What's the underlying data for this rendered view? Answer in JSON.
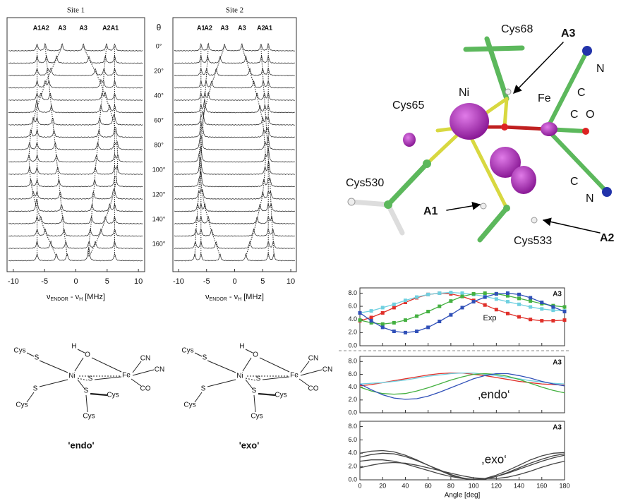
{
  "spectra": {
    "theta_label": "θ",
    "angles": [
      {
        "value": 0,
        "label": "0°"
      },
      {
        "value": 20,
        "label": "20°"
      },
      {
        "value": 40,
        "label": "40°"
      },
      {
        "value": 60,
        "label": "60°"
      },
      {
        "value": 80,
        "label": "80°"
      },
      {
        "value": 100,
        "label": "100°"
      },
      {
        "value": 120,
        "label": "120°"
      },
      {
        "value": 140,
        "label": "140°"
      },
      {
        "value": 160,
        "label": "160°"
      }
    ],
    "trace_angles": [
      0,
      10,
      20,
      30,
      40,
      50,
      60,
      70,
      80,
      90,
      100,
      110,
      120,
      130,
      140,
      150,
      160,
      170
    ],
    "panels": [
      {
        "title": "Site 1",
        "peak_labels": [
          "A1",
          "A2",
          "A3",
          "A3",
          "A2",
          "A1"
        ],
        "xlim": [
          -11,
          11
        ],
        "xticks": [
          -10,
          -5,
          0,
          5,
          10
        ],
        "xlabel_parts": [
          "ν",
          "ENDOR",
          " - ν",
          "H",
          "  [MHz]"
        ],
        "tracks": [
          {
            "x": [
              -6.2,
              -6.2,
              -6.2,
              -6.2,
              -6.2,
              -6.2,
              -6.2,
              -6.2,
              -6.2,
              -6.2,
              -6.2,
              -6.2,
              -6.2,
              -6.2,
              -6.2,
              -6.2,
              -6.2,
              -6.2
            ]
          },
          {
            "x": [
              -4.9,
              -4.7,
              -4.5,
              -4.3,
              -4.1,
              -3.9,
              -3.7,
              -3.5,
              -3.3,
              -3.1,
              -2.9,
              -2.7,
              -2.5,
              -2.3,
              -2.1,
              -1.9,
              -1.6,
              -1.4
            ]
          },
          {
            "x": [
              -2.2,
              -3.1,
              -4.0,
              -4.9,
              -5.6,
              -6.3,
              -6.8,
              -7.2,
              -7.4,
              -7.5,
              -7.4,
              -7.2,
              -6.8,
              -6.3,
              -5.6,
              -4.9,
              -4.0,
              -3.1
            ]
          },
          {
            "x": [
              1.2,
              2.1,
              3.1,
              4.0,
              4.7,
              5.4,
              6.0,
              6.4,
              6.6,
              6.7,
              6.6,
              6.4,
              6.0,
              5.4,
              4.7,
              4.0,
              3.1,
              2.1
            ]
          },
          {
            "x": [
              4.9,
              4.7,
              4.5,
              4.4,
              4.2,
              4.0,
              3.8,
              3.7,
              3.5,
              3.3,
              3.1,
              3.0,
              2.8,
              2.6,
              2.5,
              2.3,
              2.1,
              2.0
            ]
          },
          {
            "x": [
              6.2,
              6.2,
              6.2,
              6.2,
              6.2,
              6.2,
              6.2,
              6.2,
              6.2,
              6.2,
              6.2,
              6.2,
              6.2,
              6.2,
              6.2,
              6.2,
              6.2,
              6.2
            ]
          }
        ]
      },
      {
        "title": "Site 2",
        "peak_labels": [
          "A1",
          "A2",
          "A3",
          "A3",
          "A2",
          "A1"
        ],
        "xlim": [
          -11,
          11
        ],
        "xticks": [
          -10,
          -5,
          0,
          5,
          10
        ],
        "xlabel_parts": [
          "ν",
          "ENDOR",
          " - ν",
          "H",
          "  [MHz]"
        ],
        "tracks": [
          {
            "x": [
              -6.0,
              -6.0,
              -6.0,
              -6.0,
              -6.0,
              -6.0,
              -6.0,
              -6.0,
              -6.0,
              -6.0,
              -6.0,
              -6.0,
              -6.0,
              -6.0,
              -6.0,
              -6.0,
              -6.0,
              -6.0
            ]
          },
          {
            "x": [
              -4.7,
              -4.8,
              -5.0,
              -5.1,
              -5.3,
              -5.4,
              -5.6,
              -5.7,
              -5.9,
              -6.0,
              -6.1,
              -6.3,
              -6.4,
              -6.6,
              -6.7,
              -6.9,
              -7.0,
              -7.1
            ]
          },
          {
            "x": [
              -1.8,
              -2.6,
              -3.3,
              -4.1,
              -4.7,
              -5.3,
              -5.7,
              -6.0,
              -6.2,
              -6.3,
              -6.2,
              -6.0,
              -5.7,
              -5.3,
              -4.7,
              -4.1,
              -3.3,
              -2.6
            ]
          },
          {
            "x": [
              1.3,
              2.0,
              2.7,
              3.4,
              4.0,
              4.5,
              5.0,
              5.2,
              5.4,
              5.5,
              5.4,
              5.2,
              5.0,
              4.5,
              4.0,
              3.4,
              2.7,
              2.0
            ]
          },
          {
            "x": [
              4.7,
              4.8,
              5.0,
              5.1,
              5.3,
              5.4,
              5.6,
              5.7,
              5.9,
              6.0,
              6.1,
              6.3,
              6.4,
              6.5,
              6.6,
              6.8,
              6.9,
              7.0
            ]
          },
          {
            "x": [
              6.0,
              6.0,
              6.0,
              6.0,
              6.0,
              6.0,
              6.0,
              6.0,
              6.0,
              6.0,
              6.0,
              6.0,
              6.0,
              6.0,
              6.0,
              6.0,
              6.0,
              6.0
            ]
          }
        ]
      }
    ]
  },
  "molecule": {
    "labels": [
      "Cys68",
      "A3",
      "N",
      "Ni",
      "Fe",
      "C",
      "Cys65",
      "C",
      "O",
      "C",
      "N",
      "Cys530",
      "A1",
      "Cys533",
      "A2"
    ]
  },
  "structures": [
    {
      "labels": [
        "Cys",
        "S",
        "H",
        "O",
        "Ni",
        "Fe",
        "CN",
        "CN",
        "CO",
        "S",
        "S",
        "Cys",
        "S",
        "Cys",
        "Cys"
      ],
      "caption": "'endo'"
    },
    {
      "labels": [
        "Cys",
        "S",
        "H",
        "O",
        "Ni",
        "Fe",
        "CN",
        "CN",
        "CO",
        "S",
        "S",
        "Cys",
        "S",
        "Cys",
        "Cys"
      ],
      "caption": "'exo'"
    }
  ],
  "chart_data": [
    {
      "type": "line",
      "markers": true,
      "annotation": "Exp",
      "corner_label": "A3",
      "x": [
        0,
        10,
        20,
        30,
        40,
        50,
        60,
        70,
        80,
        90,
        100,
        110,
        120,
        130,
        140,
        150,
        160,
        170,
        180
      ],
      "xlim": [
        0,
        180
      ],
      "xticks": [
        0,
        20,
        40,
        60,
        80,
        100,
        120,
        140,
        160,
        180
      ],
      "ylim": [
        0,
        8.8
      ],
      "yticks": [
        {
          "value": 0,
          "label": "0.0"
        },
        {
          "value": 2,
          "label": "2.0"
        },
        {
          "value": 4,
          "label": "4.0"
        },
        {
          "value": 6,
          "label": "6.0"
        },
        {
          "value": 8,
          "label": "8.0"
        }
      ],
      "series": [
        {
          "color": "#e0302a",
          "values": [
            3.8,
            4.3,
            5.0,
            5.8,
            6.6,
            7.3,
            7.8,
            8.0,
            7.9,
            7.5,
            6.9,
            6.2,
            5.5,
            4.9,
            4.4,
            4.0,
            3.8,
            3.8,
            3.9
          ]
        },
        {
          "color": "#6fd0e0",
          "values": [
            5.0,
            5.3,
            5.8,
            6.3,
            6.9,
            7.4,
            7.8,
            8.0,
            8.1,
            8.0,
            7.8,
            7.5,
            7.1,
            6.7,
            6.3,
            5.9,
            5.6,
            5.4,
            5.3
          ]
        },
        {
          "color": "#44b040",
          "values": [
            3.9,
            3.5,
            3.3,
            3.5,
            3.9,
            4.5,
            5.2,
            6.0,
            6.8,
            7.5,
            7.9,
            8.0,
            7.9,
            7.6,
            7.2,
            6.8,
            6.4,
            6.1,
            5.9
          ]
        },
        {
          "color": "#3050b8",
          "values": [
            5.0,
            3.8,
            2.8,
            2.2,
            2.0,
            2.2,
            2.8,
            3.7,
            4.7,
            5.8,
            6.7,
            7.4,
            7.9,
            8.0,
            7.8,
            7.3,
            6.6,
            5.9,
            5.2
          ]
        }
      ]
    },
    {
      "type": "line",
      "markers": false,
      "annotation": "‚endo‘",
      "corner_label": "A3",
      "x": [
        0,
        10,
        20,
        30,
        40,
        50,
        60,
        70,
        80,
        90,
        100,
        110,
        120,
        130,
        140,
        150,
        160,
        170,
        180
      ],
      "xlim": [
        0,
        180
      ],
      "xticks": [
        0,
        20,
        40,
        60,
        80,
        100,
        120,
        140,
        160,
        180
      ],
      "ylim": [
        0,
        8.8
      ],
      "yticks": [
        {
          "value": 0,
          "label": "0.0"
        },
        {
          "value": 2,
          "label": "2.0"
        },
        {
          "value": 4,
          "label": "4.0"
        },
        {
          "value": 6,
          "label": "6.0"
        },
        {
          "value": 8,
          "label": "8.0"
        }
      ],
      "series": [
        {
          "color": "#e0302a",
          "values": [
            4.2,
            4.4,
            4.7,
            5.0,
            5.3,
            5.6,
            5.9,
            6.1,
            6.2,
            6.2,
            6.0,
            5.8,
            5.5,
            5.2,
            4.9,
            4.7,
            4.5,
            4.4,
            4.3
          ]
        },
        {
          "color": "#6fd0e0",
          "values": [
            4.5,
            4.6,
            4.7,
            4.9,
            5.1,
            5.4,
            5.7,
            5.9,
            6.1,
            6.2,
            6.2,
            6.0,
            5.8,
            5.5,
            5.3,
            5.0,
            4.8,
            4.6,
            4.5
          ]
        },
        {
          "color": "#44b040",
          "values": [
            4.0,
            3.4,
            3.0,
            2.9,
            3.0,
            3.4,
            3.9,
            4.5,
            5.1,
            5.6,
            6.0,
            6.1,
            6.0,
            5.7,
            5.2,
            4.6,
            4.0,
            3.5,
            3.1
          ]
        },
        {
          "color": "#3050b8",
          "values": [
            4.5,
            3.6,
            2.8,
            2.3,
            2.1,
            2.2,
            2.6,
            3.2,
            3.9,
            4.6,
            5.3,
            5.8,
            6.1,
            6.1,
            5.8,
            5.4,
            4.9,
            4.5,
            4.2
          ]
        }
      ]
    },
    {
      "type": "line",
      "markers": false,
      "annotation": ",exo‘",
      "corner_label": "A3",
      "xlabel": "Angle [deg]",
      "x": [
        0,
        10,
        20,
        30,
        40,
        50,
        60,
        70,
        80,
        90,
        100,
        110,
        120,
        130,
        140,
        150,
        160,
        170,
        180
      ],
      "xlim": [
        0,
        180
      ],
      "xticks": [
        0,
        20,
        40,
        60,
        80,
        100,
        120,
        140,
        160,
        180
      ],
      "ylim": [
        0,
        8.8
      ],
      "yticks": [
        {
          "value": 0,
          "label": "0.0"
        },
        {
          "value": 2,
          "label": "2.0"
        },
        {
          "value": 4,
          "label": "4.0"
        },
        {
          "value": 6,
          "label": "6.0"
        },
        {
          "value": 8,
          "label": "8.0"
        }
      ],
      "series": [
        {
          "color": "#444444",
          "values": [
            4.0,
            4.3,
            4.4,
            4.2,
            3.7,
            3.0,
            2.2,
            1.4,
            0.7,
            0.2,
            0.0,
            0.2,
            0.7,
            1.4,
            2.2,
            3.0,
            3.6,
            4.0,
            4.1
          ]
        },
        {
          "color": "#444444",
          "values": [
            3.4,
            3.8,
            4.0,
            3.9,
            3.5,
            2.9,
            2.2,
            1.5,
            0.8,
            0.3,
            0.0,
            0.1,
            0.5,
            1.1,
            1.8,
            2.5,
            3.1,
            3.6,
            3.9
          ]
        },
        {
          "color": "#444444",
          "values": [
            2.8,
            3.0,
            3.0,
            2.8,
            2.4,
            1.9,
            1.4,
            0.9,
            0.5,
            0.2,
            0.1,
            0.2,
            0.5,
            1.0,
            1.6,
            2.2,
            2.8,
            3.3,
            3.7
          ]
        },
        {
          "color": "#444444",
          "values": [
            1.8,
            2.2,
            2.5,
            2.6,
            2.5,
            2.2,
            1.8,
            1.4,
            1.0,
            0.6,
            0.3,
            0.2,
            0.2,
            0.4,
            0.8,
            1.3,
            1.9,
            2.4,
            2.8
          ]
        }
      ]
    }
  ]
}
